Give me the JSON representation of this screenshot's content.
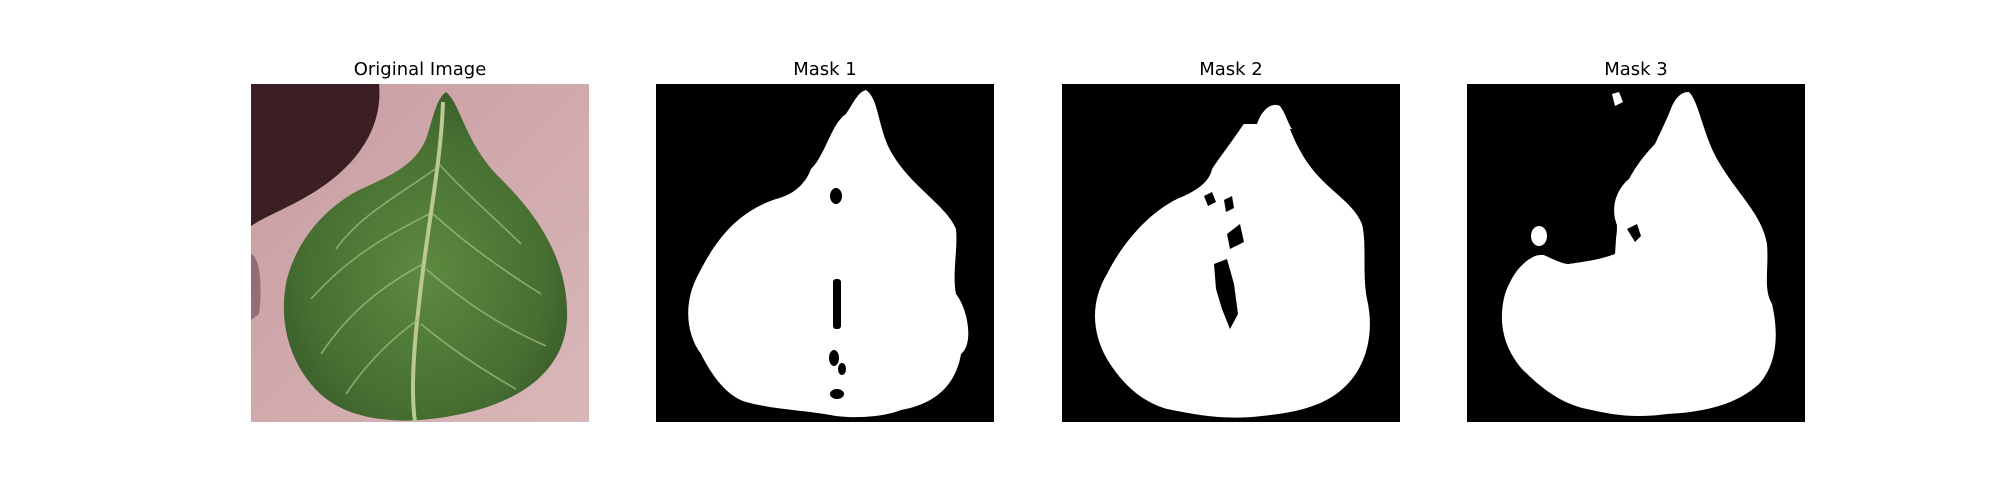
{
  "panels": [
    {
      "title": "Original Image"
    },
    {
      "title": "Mask 1"
    },
    {
      "title": "Mask 2"
    },
    {
      "title": "Mask 3"
    }
  ],
  "colors": {
    "mask_background": "#000000",
    "mask_foreground": "#ffffff",
    "leaf_green": "#4f7a37",
    "table_pink": "#cfa7a8",
    "shadow": "#3a1e22"
  }
}
